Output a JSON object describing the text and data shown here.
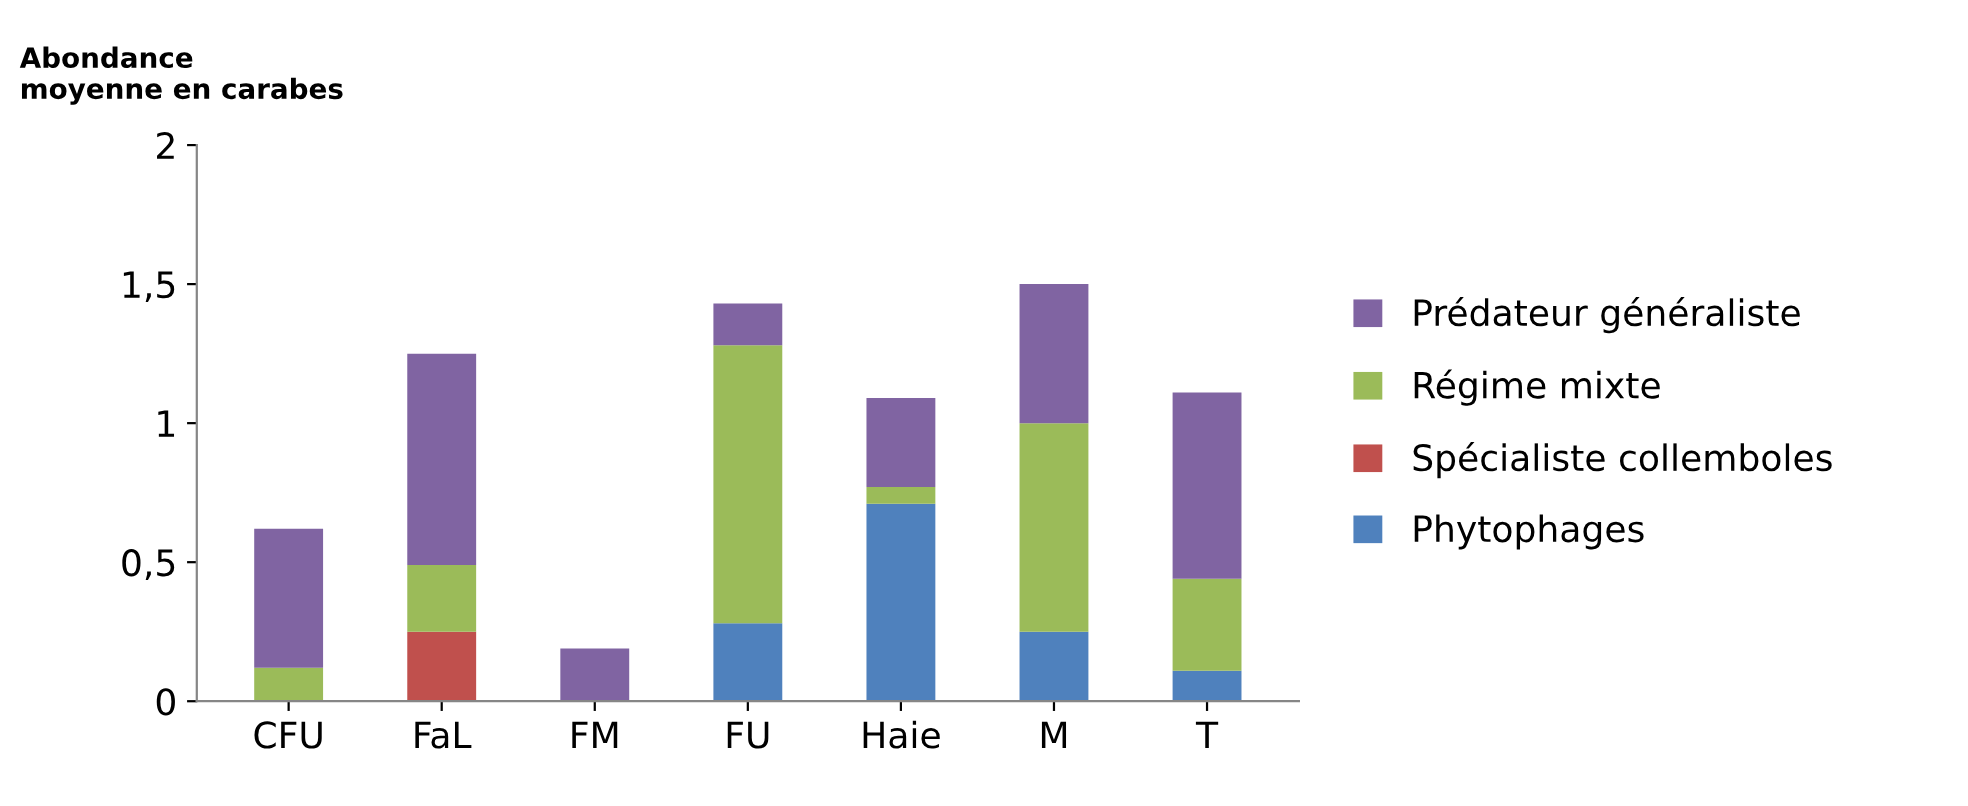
{
  "chart_data": {
    "type": "bar",
    "stacked": true,
    "ylabel": "Abondance\nmoyenne en carabes",
    "categories": [
      "CFU",
      "FaL",
      "FM",
      "FU",
      "Haie",
      "M",
      "T"
    ],
    "series": [
      {
        "name": "Phytophages",
        "color": "#4f81bd",
        "values": [
          0,
          0,
          0,
          0.28,
          0.71,
          0.25,
          0.11
        ]
      },
      {
        "name": "Spécialiste collemboles",
        "color": "#c0504d",
        "values": [
          0,
          0.25,
          0,
          0,
          0,
          0,
          0
        ]
      },
      {
        "name": "Régime mixte",
        "color": "#9bbb59",
        "values": [
          0.12,
          0.24,
          0,
          1.0,
          0.06,
          0.75,
          0.33
        ]
      },
      {
        "name": "Prédateur généraliste",
        "color": "#8064a2",
        "values": [
          0.5,
          0.76,
          0.19,
          0.15,
          0.32,
          0.5,
          0.67
        ]
      }
    ],
    "ylim": [
      0,
      2
    ],
    "yticks": [
      0,
      {
        "value": 0.5,
        "label": "0,5"
      },
      1,
      {
        "value": 1.5,
        "label": "1,5"
      },
      2
    ],
    "grid": false,
    "legend": "right"
  }
}
